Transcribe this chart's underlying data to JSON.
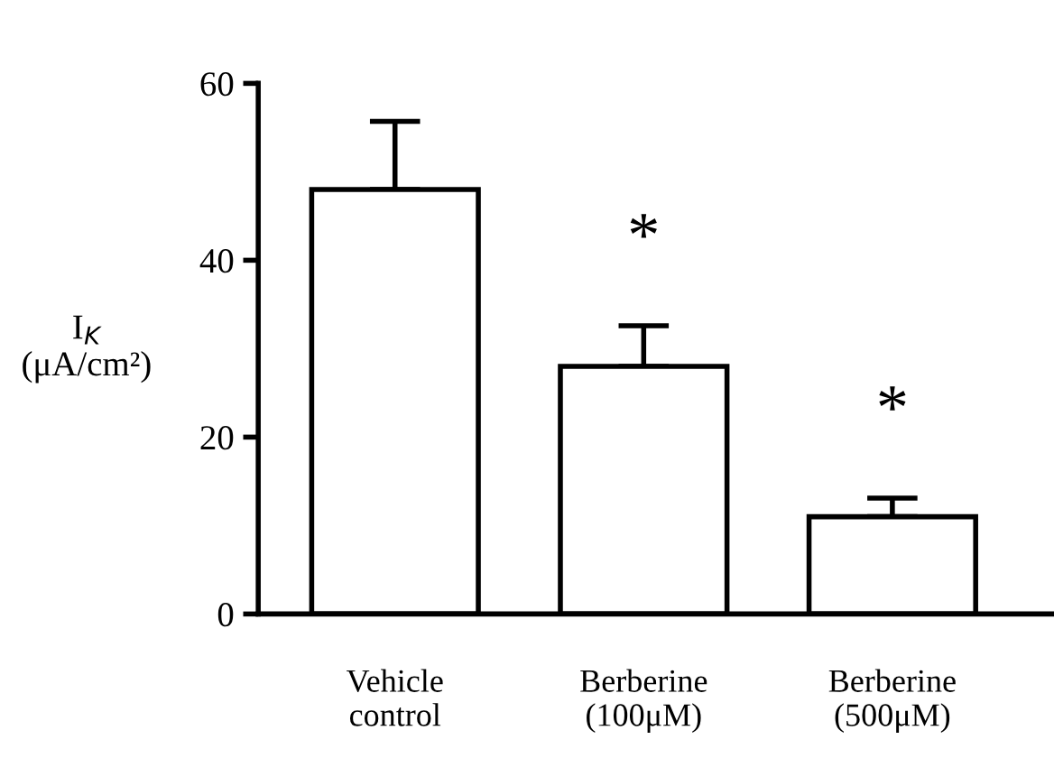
{
  "chart_data": {
    "type": "bar",
    "ylabel": "I$_{K}$\n(μA/cm²)",
    "categories": [
      "Vehicle\ncontrol",
      "Berberine\n(100μM)",
      "Berberine\n(500μM)"
    ],
    "values": [
      48.0,
      28.0,
      11.0
    ],
    "errors": [
      [
        48.0,
        55.7
      ],
      [
        28.0,
        32.6
      ],
      [
        11.0,
        13.1
      ]
    ],
    "color": "#ffffff",
    "annotations": [
      "*",
      "*"
    ],
    "ylim": [
      0,
      60
    ],
    "yticks": [
      0,
      20,
      40,
      60
    ],
    "grid": false,
    "legend": false
  }
}
